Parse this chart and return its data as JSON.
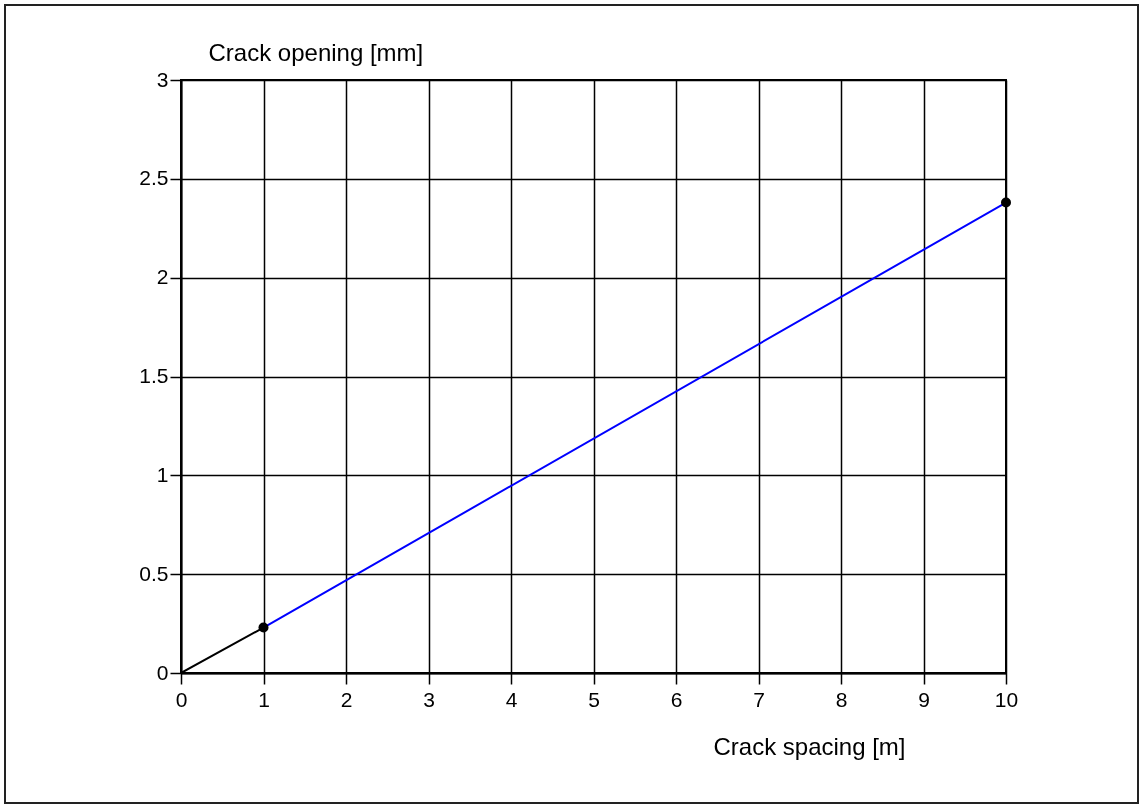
{
  "chart_data": {
    "type": "line",
    "xlabel": "Crack spacing [m]",
    "ylabel": "Crack opening [mm]",
    "xlim": [
      0,
      10
    ],
    "ylim": [
      0,
      3
    ],
    "xticks": [
      0,
      1,
      2,
      3,
      4,
      5,
      6,
      7,
      8,
      9,
      10
    ],
    "yticks": [
      0,
      0.5,
      1,
      1.5,
      2,
      2.5,
      3
    ],
    "grid": true,
    "series": [
      {
        "type": "line",
        "color": "#000000",
        "x": [
          0,
          1
        ],
        "values": [
          0,
          0.23
        ]
      },
      {
        "type": "line",
        "color": "#0000ff",
        "x": [
          1,
          10
        ],
        "values": [
          0.23,
          2.38
        ]
      },
      {
        "type": "scatter",
        "color": "#000000",
        "marker": "circle",
        "x": [
          1,
          10
        ],
        "values": [
          0.23,
          2.38
        ]
      }
    ]
  }
}
